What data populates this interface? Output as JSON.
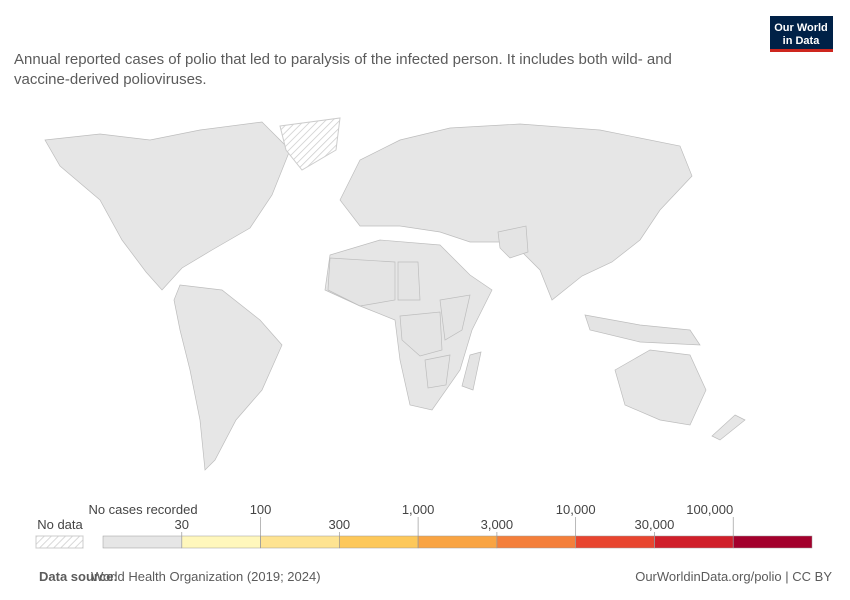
{
  "header": {
    "subtitle": "Annual reported cases of polio that led to paralysis of the infected person. It includes both wild- and vaccine-derived polioviruses.",
    "logo": [
      "Our World",
      "in Data"
    ]
  },
  "legend": {
    "no_data": "No data",
    "no_cases": "No cases recorded",
    "ticks": [
      30,
      100,
      300,
      {
        "value": 1000,
        "label": "1,000"
      },
      {
        "value": 3000,
        "label": "3,000"
      },
      {
        "value": 10000,
        "label": "10,000"
      },
      {
        "value": 30000,
        "label": "30,000"
      },
      {
        "value": 100000,
        "label": "100,000"
      }
    ],
    "colors": [
      "#e6e6e6",
      "#fff7bc",
      "#fee391",
      "#fdc85a",
      "#f9a443",
      "#f47f3b",
      "#e8452f",
      "#d01f2a",
      "#a3002c"
    ],
    "log_scale": true
  },
  "footer": {
    "source_label": "Data source:",
    "source": "World Health Organization (2019; 2024)",
    "link": "OurWorldinData.org/polio | CC BY"
  }
}
